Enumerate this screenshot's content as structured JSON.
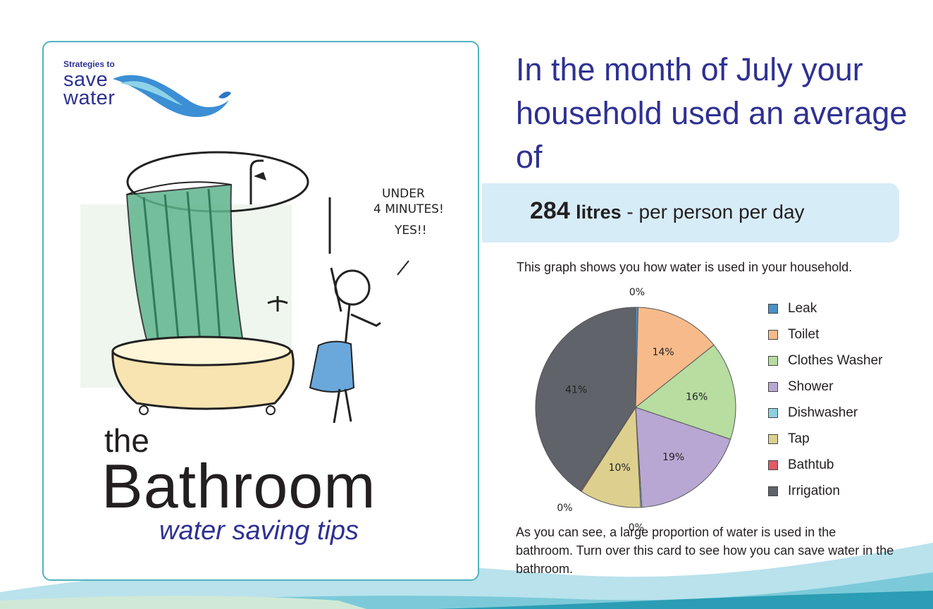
{
  "logo": {
    "small_text": "Strategies to",
    "big_text": "save\nwater"
  },
  "illustration": {
    "speech_bubble": "UNDER\n4 MINUTES!\nYES!!"
  },
  "title": {
    "the": "the",
    "main": "Bathroom",
    "subtitle": "water saving tips"
  },
  "headline": "In the month of July your household used an average of",
  "stat": {
    "number": "284",
    "unit": "litres",
    "rest": " - per person per day"
  },
  "graph_intro": "This graph shows you how water is used in your household.",
  "caption": "As you can see, a large proportion of water is used in the bathroom.  Turn over this card to see how you can save water in the bathroom.",
  "colors": {
    "brand_blue": "#2e3192",
    "card_border": "#4fb3bf",
    "banner_bg": "#d6ecf7"
  },
  "chart_data": {
    "type": "pie",
    "title": "",
    "categories": [
      "Leak",
      "Toilet",
      "Clothes Washer",
      "Shower",
      "Dishwasher",
      "Tap",
      "Bathtub",
      "Irrigation"
    ],
    "values": [
      0.4,
      14,
      16,
      19,
      0.2,
      10,
      0.2,
      41
    ],
    "labels": [
      "0%",
      "14%",
      "16%",
      "19%",
      "0%",
      "10%",
      "0%",
      "41%"
    ],
    "colors": [
      "#4a90c8",
      "#f7bb8b",
      "#b7dda1",
      "#b8a7d2",
      "#8ecfe2",
      "#ddd08e",
      "#e15a66",
      "#606369"
    ],
    "legend_position": "right"
  }
}
